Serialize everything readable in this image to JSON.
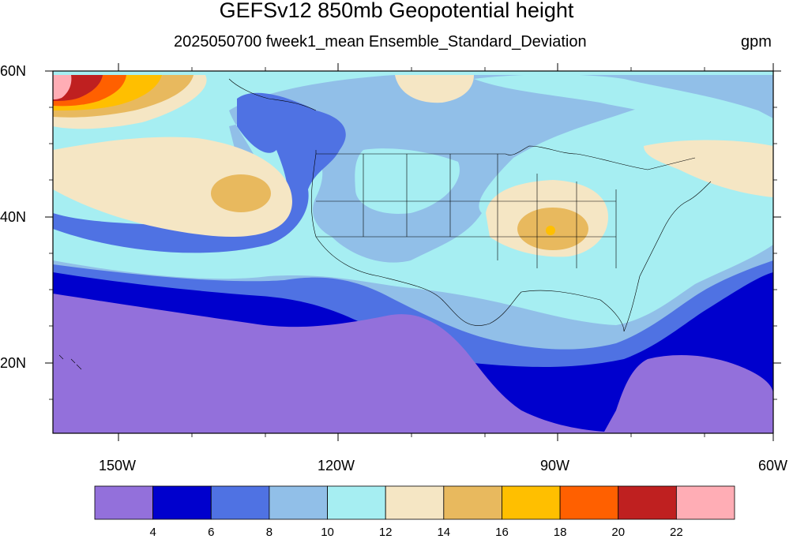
{
  "title": "GEFSv12 850mb Geopotential height",
  "subtitle": "2025050700 fweek1_mean Ensemble_Standard_Deviation",
  "units": "gpm",
  "lat_labels": [
    "60N",
    "40N",
    "20N"
  ],
  "lon_labels": [
    "150W",
    "120W",
    "90W",
    "60W"
  ],
  "colorbar": {
    "colors": [
      "#9370db",
      "#0000cd",
      "#4f72e3",
      "#91bfe8",
      "#a6eef2",
      "#f5e6c4",
      "#e8b95e",
      "#ffbf00",
      "#ff6000",
      "#bf2020",
      "#ffadb5"
    ],
    "labels": [
      "4",
      "6",
      "8",
      "10",
      "12",
      "14",
      "16",
      "18",
      "20",
      "22"
    ]
  }
}
